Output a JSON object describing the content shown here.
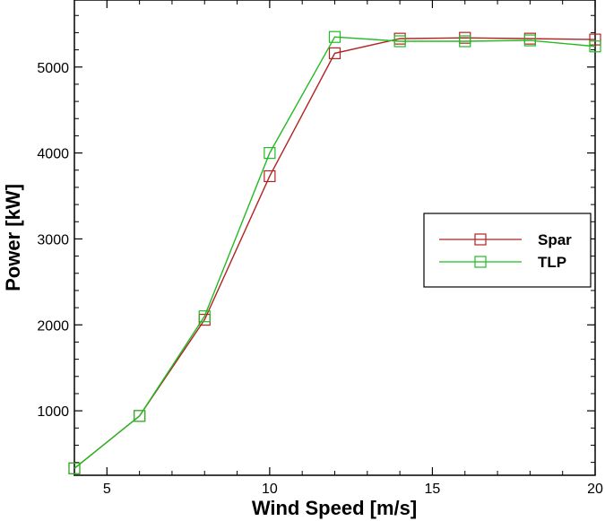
{
  "chart_data": {
    "type": "line",
    "title": "",
    "xlabel": "Wind Speed [m/s]",
    "ylabel": "Power [kW]",
    "xlim": [
      4,
      20
    ],
    "ylim": [
      250,
      5780
    ],
    "x_ticks": [
      5,
      10,
      15,
      20
    ],
    "y_ticks": [
      1000,
      2000,
      3000,
      4000,
      5000
    ],
    "grid": false,
    "legend_position": "right-middle",
    "series": [
      {
        "name": "Spar",
        "color": "#b22222",
        "marker": "square",
        "x": [
          4,
          6,
          8,
          10,
          12,
          14,
          16,
          18,
          20
        ],
        "y": [
          330,
          940,
          2060,
          3730,
          5160,
          5330,
          5340,
          5330,
          5320
        ]
      },
      {
        "name": "TLP",
        "color": "#22bb22",
        "marker": "square",
        "x": [
          4,
          6,
          8,
          10,
          12,
          14,
          16,
          18,
          20
        ],
        "y": [
          330,
          940,
          2100,
          4000,
          5350,
          5300,
          5300,
          5310,
          5240
        ]
      }
    ]
  }
}
